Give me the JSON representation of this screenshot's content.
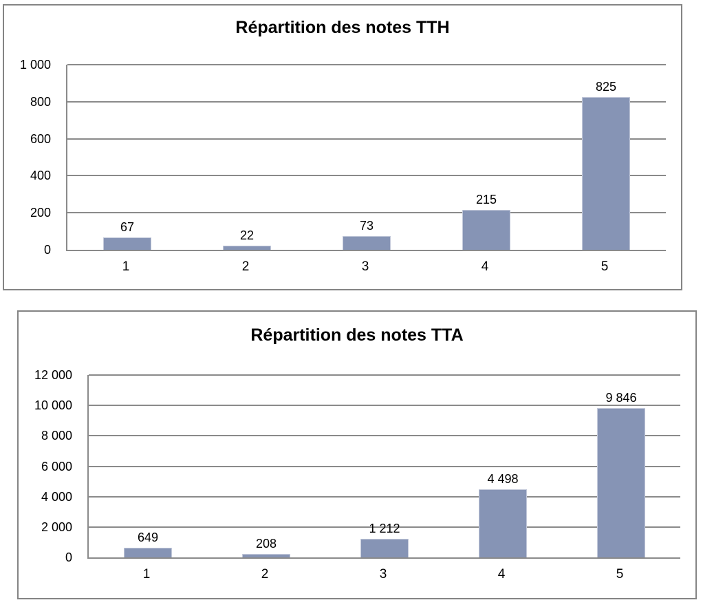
{
  "page": {
    "background": "#ffffff"
  },
  "style": {
    "bar_fill": "#8694B5",
    "bar_edge": "#C3C9DA",
    "grid_color": "#8A8A8A",
    "frame_color": "#848484",
    "text_color": "#000000"
  },
  "chart_data": [
    {
      "type": "bar",
      "title": "Répartition des notes TTH",
      "categories": [
        "1",
        "2",
        "3",
        "4",
        "5"
      ],
      "values": [
        67,
        22,
        73,
        215,
        825
      ],
      "data_labels": [
        "67",
        "22",
        "73",
        "215",
        "825"
      ],
      "xlabel": "",
      "ylabel": "",
      "ylim": [
        0,
        1000
      ],
      "yticks": [
        0,
        200,
        400,
        600,
        800,
        1000
      ],
      "ytick_labels": [
        "0",
        "200",
        "400",
        "600",
        "800",
        "1 000"
      ],
      "grid": true,
      "legend": "none"
    },
    {
      "type": "bar",
      "title": "Répartition des notes TTA",
      "categories": [
        "1",
        "2",
        "3",
        "4",
        "5"
      ],
      "values": [
        649,
        208,
        1212,
        4498,
        9846
      ],
      "data_labels": [
        "649",
        "208",
        "1 212",
        "4 498",
        "9 846"
      ],
      "xlabel": "",
      "ylabel": "",
      "ylim": [
        0,
        12000
      ],
      "yticks": [
        0,
        2000,
        4000,
        6000,
        8000,
        10000,
        12000
      ],
      "ytick_labels": [
        "0",
        "2 000",
        "4 000",
        "6 000",
        "8 000",
        "10 000",
        "12 000"
      ],
      "grid": true,
      "legend": "none"
    }
  ]
}
